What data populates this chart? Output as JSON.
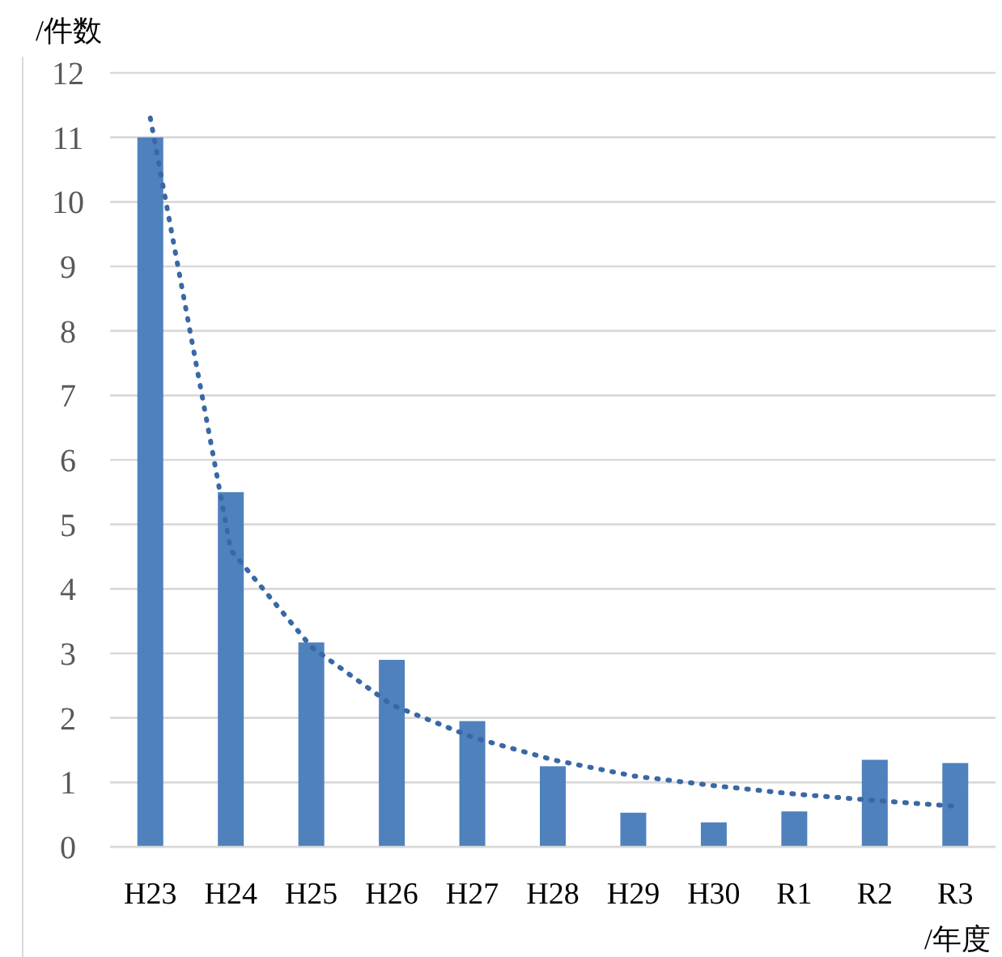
{
  "chart_data": {
    "type": "bar",
    "ylabel": "/件数",
    "xlabel": "/年度",
    "categories": [
      "H23",
      "H24",
      "H25",
      "H26",
      "H27",
      "H28",
      "H29",
      "H30",
      "R1",
      "R2",
      "R3"
    ],
    "series": [
      {
        "color": "#4f81bd",
        "values": [
          11,
          5.5,
          3.17,
          2.9,
          1.95,
          1.25,
          0.53,
          0.38,
          0.55,
          1.35,
          1.3
        ]
      },
      {
        "type": "line",
        "color": "#3a68a6",
        "line_style": "dotted",
        "values": [
          11.3,
          4.6,
          3.1,
          2.2,
          1.7,
          1.35,
          1.1,
          0.95,
          0.82,
          0.72,
          0.63
        ]
      }
    ],
    "ylim": [
      0,
      12
    ],
    "yticks": [
      0,
      1,
      2,
      3,
      4,
      5,
      6,
      7,
      8,
      9,
      10,
      11,
      12
    ],
    "grid": "y"
  }
}
